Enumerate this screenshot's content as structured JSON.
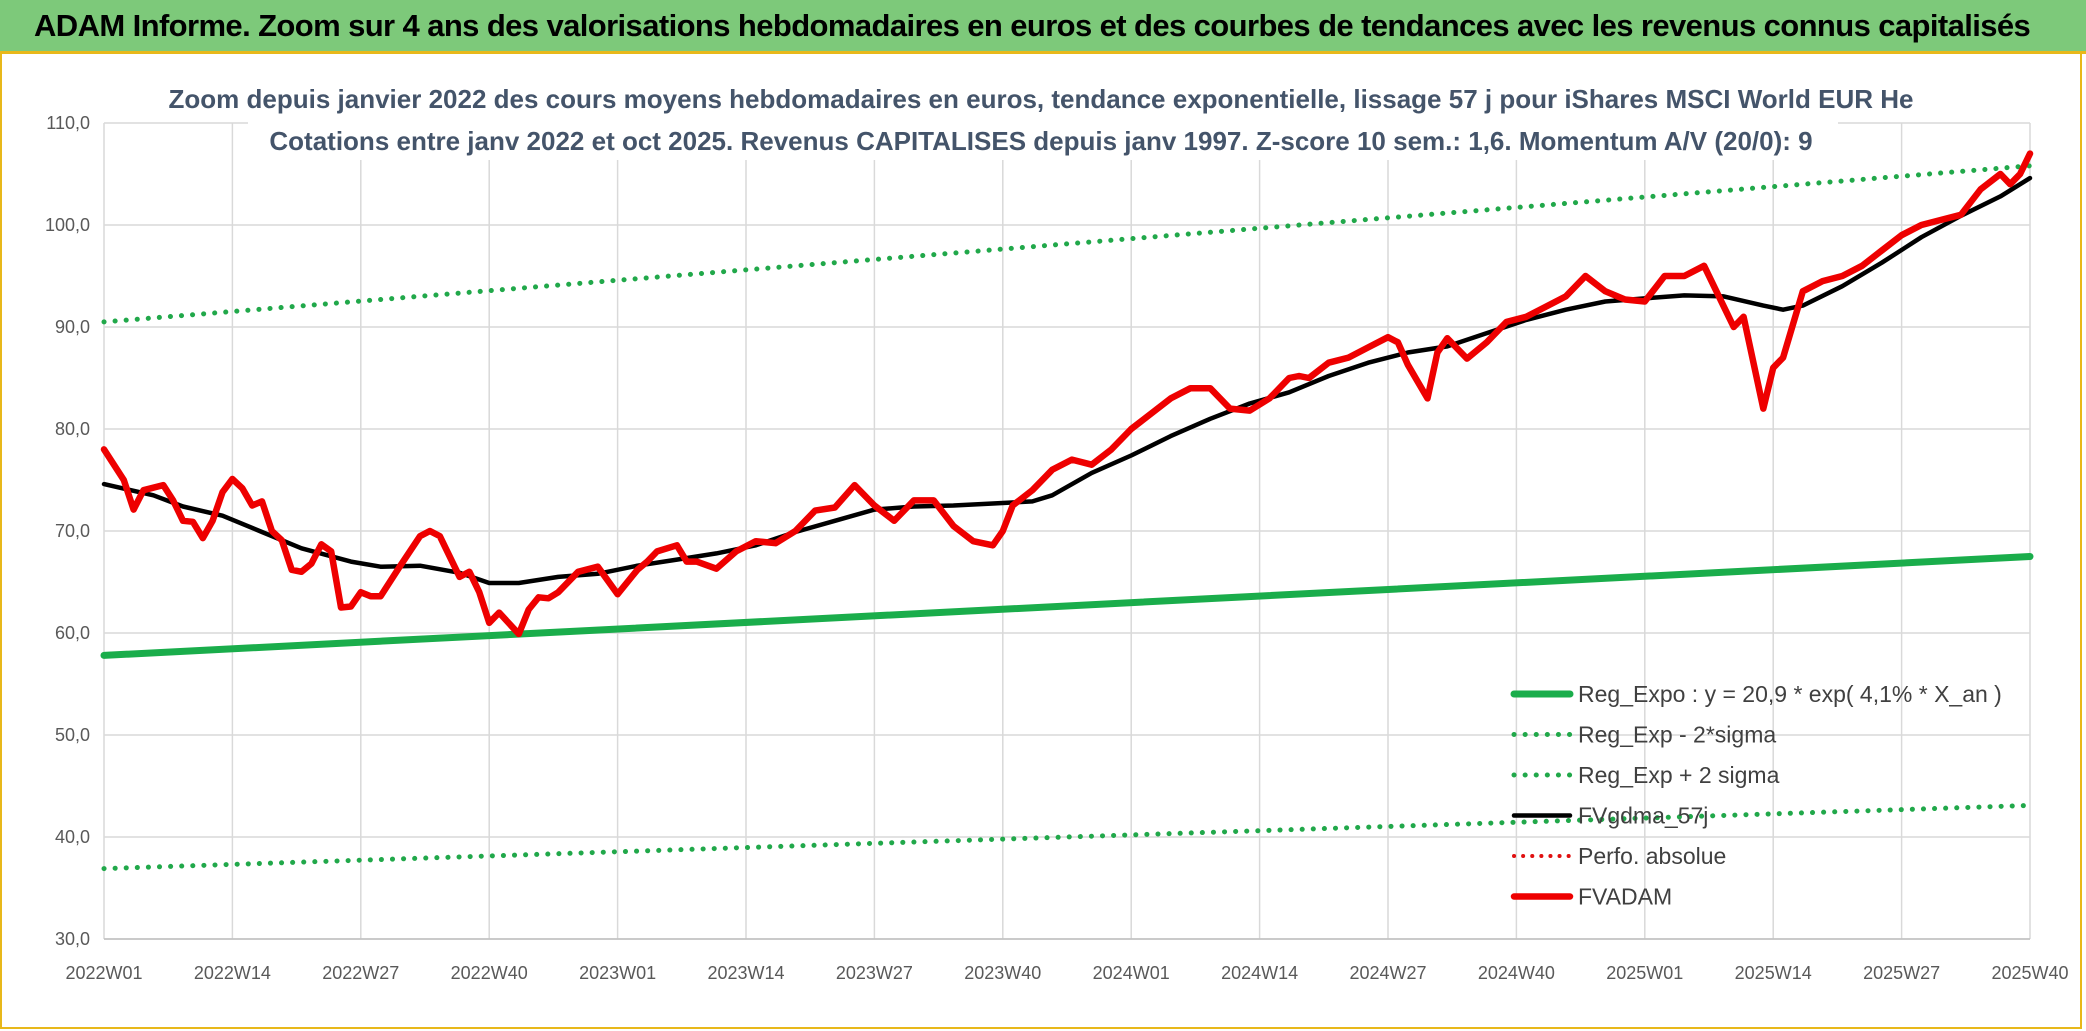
{
  "banner": {
    "title": "ADAM Informe. Zoom sur 4 ans des valorisations hebdomadaires en euros et des courbes de tendances avec les revenus connus capitalisés"
  },
  "colors": {
    "banner_bg": "#7dc97a",
    "frame_accent": "#e8b81a",
    "trend_green": "#1aad4b",
    "sigma_green": "#21a84a",
    "fvgdma_black": "#000000",
    "fvadam_red": "#ee0000",
    "perfo_red": "#e01010",
    "grid": "#d9d9d9",
    "title_text": "#44546a"
  },
  "chart_data": {
    "type": "line",
    "title": "Zoom depuis janvier 2022 des cours moyens hebdomadaires en euros, tendance exponentielle, lissage 57 j pour iShares MSCI World EUR He",
    "subtitle": "Cotations entre janv 2022 et oct 2025. Revenus CAPITALISES depuis janv 1997. Z-score 10 sem.: 1,6. Momentum A/V (20/0): 9",
    "xlabel": "",
    "ylabel": "",
    "ylim": [
      30,
      110
    ],
    "yticks": [
      "30,0",
      "40,0",
      "50,0",
      "60,0",
      "70,0",
      "80,0",
      "90,0",
      "100,0",
      "110,0"
    ],
    "xlim": [
      0,
      195
    ],
    "x_tick_labels": [
      "2022W01",
      "2022W14",
      "2022W27",
      "2022W40",
      "2023W01",
      "2023W14",
      "2023W27",
      "2023W40",
      "2024W01",
      "2024W14",
      "2024W27",
      "2024W40",
      "2025W01",
      "2025W14",
      "2025W27",
      "2025W40"
    ],
    "x_tick_index": [
      0,
      13,
      26,
      39,
      52,
      65,
      78,
      91,
      104,
      117,
      130,
      143,
      156,
      169,
      182,
      195
    ],
    "grid": true,
    "legend_position": "bottom-right",
    "series": [
      {
        "name": "Reg_Expo : y = 20,9 * exp( 4,1% *  X_an )",
        "style": "solid-thick",
        "x": [
          0,
          195
        ],
        "values": [
          57.8,
          67.5
        ]
      },
      {
        "name": "Reg_Exp - 2*sigma",
        "style": "dotted",
        "x": [
          0,
          195
        ],
        "values": [
          36.9,
          43.1
        ]
      },
      {
        "name": "Reg_Exp + 2 sigma",
        "style": "dotted",
        "x": [
          0,
          195
        ],
        "values": [
          90.5,
          105.8
        ]
      },
      {
        "name": "FVgdma_57j",
        "style": "solid",
        "x": [
          0,
          5,
          8,
          12,
          16,
          20,
          25,
          28,
          32,
          36,
          39,
          42,
          46,
          50,
          54,
          58,
          62,
          66,
          70,
          74,
          78,
          82,
          86,
          90,
          94,
          96,
          100,
          104,
          108,
          112,
          116,
          120,
          124,
          128,
          132,
          136,
          140,
          144,
          148,
          152,
          156,
          160,
          164,
          168,
          170,
          172,
          176,
          180,
          184,
          188,
          192,
          195
        ],
        "values": [
          74.6,
          73.5,
          72.4,
          71.5,
          69.9,
          68.3,
          67.0,
          66.5,
          66.6,
          65.9,
          64.9,
          64.9,
          65.5,
          65.8,
          66.6,
          67.2,
          67.8,
          68.6,
          69.9,
          71.0,
          72.1,
          72.4,
          72.5,
          72.7,
          72.9,
          73.5,
          75.7,
          77.4,
          79.3,
          81.0,
          82.5,
          83.6,
          85.2,
          86.5,
          87.5,
          88.1,
          89.4,
          90.7,
          91.7,
          92.5,
          92.8,
          93.1,
          93.0,
          92.1,
          91.7,
          92.1,
          94.0,
          96.3,
          98.8,
          100.9,
          102.8,
          104.6
        ]
      },
      {
        "name": "Perfo. absolue",
        "style": "dotted-red",
        "x": [],
        "values": []
      },
      {
        "name": "FVADAM",
        "style": "solid-thick-red",
        "x": [
          0,
          2,
          3,
          4,
          6,
          7,
          8,
          9,
          10,
          11,
          12,
          13,
          14,
          15,
          16,
          17,
          18,
          19,
          20,
          21,
          22,
          23,
          24,
          25,
          26,
          27,
          28,
          30,
          32,
          33,
          34,
          36,
          37,
          38,
          39,
          40,
          42,
          43,
          44,
          45,
          46,
          48,
          50,
          52,
          54,
          55,
          56,
          58,
          59,
          60,
          62,
          64,
          66,
          68,
          70,
          72,
          74,
          76,
          78,
          80,
          82,
          84,
          86,
          88,
          90,
          91,
          92,
          94,
          96,
          98,
          100,
          102,
          104,
          106,
          108,
          110,
          112,
          114,
          116,
          118,
          120,
          121,
          122,
          124,
          126,
          128,
          130,
          131,
          132,
          134,
          135,
          136,
          138,
          140,
          142,
          144,
          146,
          148,
          150,
          152,
          154,
          156,
          158,
          160,
          162,
          164,
          165,
          166,
          168,
          169,
          170,
          172,
          174,
          176,
          178,
          180,
          182,
          184,
          186,
          188,
          190,
          192,
          193,
          194,
          195
        ],
        "values": [
          78.0,
          75.0,
          72.1,
          74.0,
          74.5,
          73.0,
          71.0,
          70.9,
          69.3,
          71.0,
          73.8,
          75.1,
          74.2,
          72.5,
          72.9,
          70.0,
          69.1,
          66.2,
          66.0,
          66.8,
          68.7,
          68.0,
          62.5,
          62.6,
          64.0,
          63.6,
          63.6,
          66.6,
          69.5,
          70.0,
          69.5,
          65.5,
          66.0,
          64.0,
          61.0,
          62.0,
          59.9,
          62.3,
          63.5,
          63.4,
          64.0,
          66.0,
          66.5,
          63.8,
          66.2,
          67.0,
          68.0,
          68.6,
          67.0,
          67.0,
          66.3,
          68.0,
          69.0,
          68.8,
          70.0,
          72.0,
          72.3,
          74.5,
          72.5,
          71.0,
          73.0,
          73.0,
          70.5,
          69.0,
          68.6,
          70.0,
          72.5,
          74.0,
          76.0,
          77.0,
          76.5,
          78.0,
          80.0,
          81.5,
          83.0,
          84.0,
          84.0,
          82.0,
          81.8,
          83.0,
          85.0,
          85.2,
          85.0,
          86.5,
          87.0,
          88.0,
          89.0,
          88.5,
          86.3,
          83.0,
          87.5,
          88.9,
          86.9,
          88.5,
          90.5,
          91.0,
          92.0,
          93.0,
          95.0,
          93.5,
          92.7,
          92.5,
          95.0,
          95.0,
          96.0,
          92.0,
          90.0,
          91.0,
          82.0,
          86.0,
          87.0,
          93.5,
          94.5,
          95.0,
          96.0,
          97.5,
          99.0,
          100.0,
          100.5,
          101.0,
          103.5,
          105.0,
          104.0,
          105.0,
          107.0
        ]
      }
    ]
  }
}
